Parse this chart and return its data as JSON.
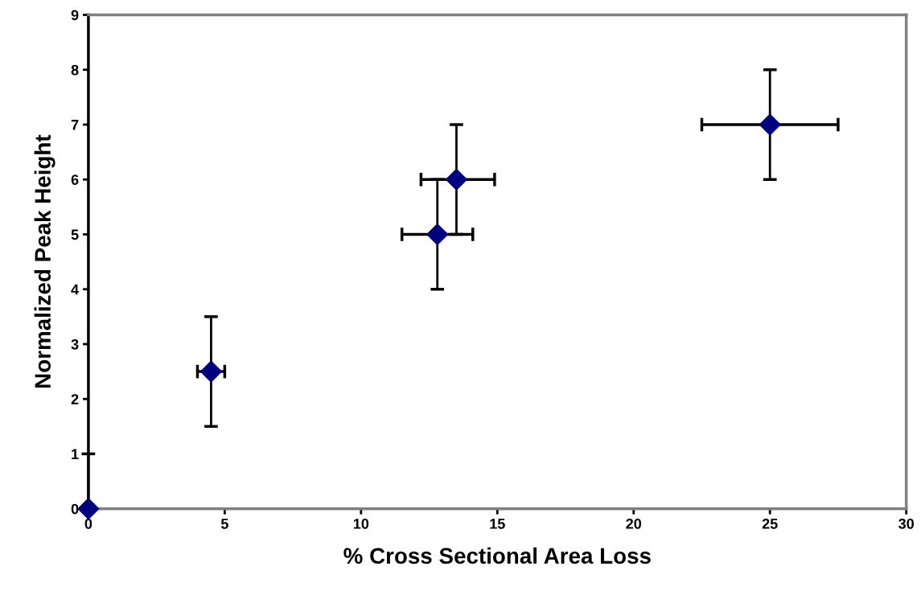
{
  "chart_data": {
    "type": "scatter",
    "xlabel": "% Cross Sectional Area Loss",
    "ylabel": "Normalized Peak Height",
    "x": [
      0,
      4.5,
      12.8,
      13.5,
      25
    ],
    "values": [
      0,
      2.5,
      5,
      6,
      7
    ],
    "errors": [
      [
        0,
        1
      ],
      [
        1.5,
        3.5
      ],
      [
        4,
        6
      ],
      [
        5,
        7
      ],
      [
        6,
        8
      ]
    ],
    "xerrors": [
      null,
      [
        4.0,
        5.0
      ],
      [
        11.5,
        14.1
      ],
      [
        12.2,
        14.9
      ],
      [
        22.5,
        27.5
      ]
    ],
    "color": "#000080",
    "marker": "diamond",
    "xlim": [
      0,
      30
    ],
    "xticks": [
      0,
      5,
      10,
      15,
      20,
      25,
      30
    ],
    "ylim": [
      0,
      9
    ],
    "yticks": [
      0,
      1,
      2,
      3,
      4,
      5,
      6,
      7,
      8,
      9
    ],
    "grid": false,
    "legend": false
  }
}
